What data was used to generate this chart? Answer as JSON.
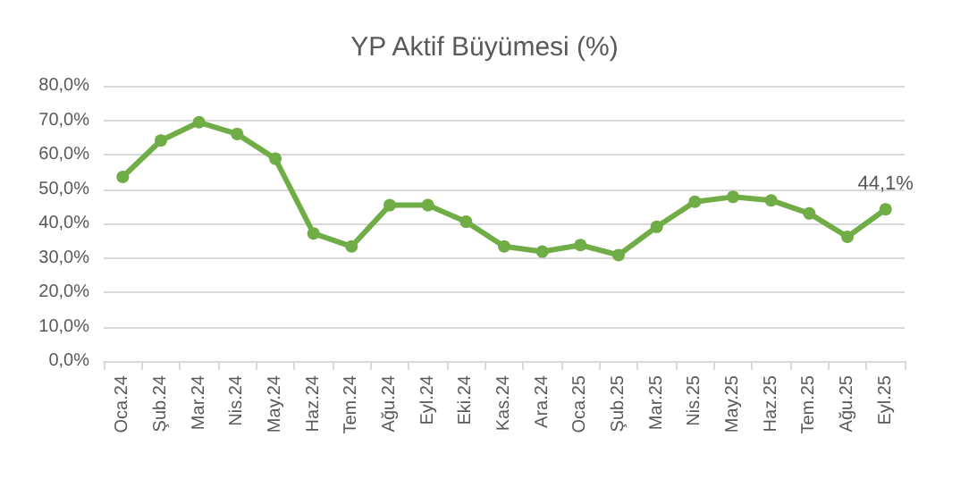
{
  "chart_data": {
    "type": "line",
    "title": "YP Aktif Büyümesi (%)",
    "categories": [
      "Oca.24",
      "Şub.24",
      "Mar.24",
      "Nis.24",
      "May.24",
      "Haz.24",
      "Tem.24",
      "Ağu.24",
      "Eyl.24",
      "Eki.24",
      "Kas.24",
      "Ara.24",
      "Oca.25",
      "Şub.25",
      "Mar.25",
      "Nis.25",
      "May.25",
      "Haz.25",
      "Tem.25",
      "Ağu.25",
      "Eyl.25"
    ],
    "series": [
      {
        "color": "#70ad47",
        "values": [
          53.5,
          64.1,
          69.4,
          66,
          58.8,
          37.1,
          33.3,
          45.3,
          45.3,
          40.5,
          33.3,
          31.8,
          33.7,
          30.8,
          39,
          46.3,
          47.7,
          46.7,
          42.9,
          36.1,
          44.1
        ],
        "value_labels": [
          null,
          null,
          null,
          null,
          null,
          null,
          null,
          null,
          null,
          null,
          null,
          null,
          null,
          null,
          null,
          null,
          null,
          null,
          null,
          null,
          "44,1%"
        ]
      }
    ],
    "ylim": [
      0,
      80
    ],
    "yticks": [
      {
        "value": 0,
        "label": "0,0%"
      },
      {
        "value": 10,
        "label": "10,0%"
      },
      {
        "value": 20,
        "label": "20,0%"
      },
      {
        "value": 30,
        "label": "30,0%"
      },
      {
        "value": 40,
        "label": "40,0%"
      },
      {
        "value": 50,
        "label": "50,0%"
      },
      {
        "value": 60,
        "label": "60,0%"
      },
      {
        "value": 70,
        "label": "70,0%"
      },
      {
        "value": 80,
        "label": "80,0%"
      }
    ],
    "grid": "y",
    "marker": "circle",
    "line_style": "solid"
  }
}
